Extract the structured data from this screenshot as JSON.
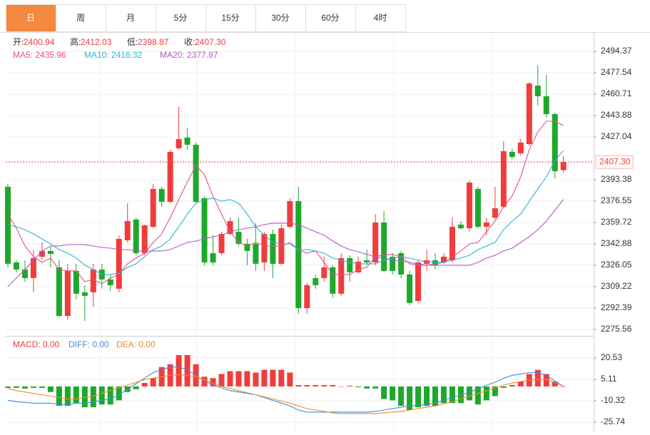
{
  "tabs": [
    {
      "label": "日",
      "active": true
    },
    {
      "label": "周"
    },
    {
      "label": "月"
    },
    {
      "label": "5分"
    },
    {
      "label": "15分"
    },
    {
      "label": "30分"
    },
    {
      "label": "60分"
    },
    {
      "label": "4时"
    }
  ],
  "chart_data": [
    {
      "type": "candlestick",
      "up_color": "#f23b3b",
      "down_color": "#1ea82b",
      "info": [
        {
          "key": "开:",
          "value": "2400.94"
        },
        {
          "key": "高:",
          "value": "2412.03"
        },
        {
          "key": "低:",
          "value": "2398.87"
        },
        {
          "key": "收:",
          "value": "2407.30"
        }
      ],
      "ylim": [
        2271.07,
        2509.5
      ],
      "yticks": [
        2494.37,
        2477.54,
        2460.71,
        2443.88,
        2427.04,
        2393.38,
        2376.55,
        2359.72,
        2342.88,
        2326.05,
        2309.22,
        2292.39,
        2275.56
      ],
      "grid": true,
      "candles": {
        "open": [
          2387.8,
          2328.3,
          2322.7,
          2316.0,
          2332.8,
          2337.3,
          2324.4,
          2286.2,
          2321.6,
          2304.8,
          2304.8,
          2322.7,
          2314.9,
          2307.6,
          2345.7,
          2362.0,
          2335.6,
          2356.3,
          2386.1,
          2376.0,
          2418.1,
          2426.5,
          2420.9,
          2378.8,
          2335.6,
          2335.6,
          2350.7,
          2352.4,
          2342.9,
          2342.9,
          2328.3,
          2350.7,
          2327.2,
          2356.3,
          2376.5,
          2292.4,
          2316.0,
          2316.0,
          2324.4,
          2303.7,
          2331.7,
          2320.5,
          2330.0,
          2328.3,
          2359.7,
          2332.8,
          2335.6,
          2318.8,
          2298.0,
          2327.2,
          2330.0,
          2328.3,
          2330.0,
          2358.0,
          2355.2,
          2386.1,
          2356.3,
          2363.6,
          2372.1,
          2415.3,
          2414.1,
          2421.4,
          2467.4,
          2459.0,
          2445.0,
          2400.94
        ],
        "high": [
          2390.0,
          2330.0,
          2330.0,
          2338.4,
          2344.0,
          2341.2,
          2330.0,
          2327.2,
          2327.2,
          2310.4,
          2327.2,
          2327.2,
          2318.8,
          2349.6,
          2374.9,
          2363.6,
          2358.0,
          2390.0,
          2387.8,
          2417.0,
          2450.6,
          2433.8,
          2422.6,
          2380.5,
          2349.6,
          2352.4,
          2363.6,
          2363.6,
          2346.8,
          2359.2,
          2352.4,
          2354.1,
          2358.0,
          2378.8,
          2387.8,
          2312.1,
          2318.8,
          2332.8,
          2326.1,
          2335.6,
          2333.9,
          2332.8,
          2338.4,
          2366.4,
          2368.7,
          2335.6,
          2337.3,
          2321.6,
          2329.4,
          2338.4,
          2335.6,
          2335.6,
          2363.6,
          2360.8,
          2392.8,
          2387.8,
          2363.6,
          2387.8,
          2423.7,
          2418.1,
          2425.4,
          2470.2,
          2483.2,
          2475.9,
          2446.1,
          2412.03
        ],
        "low": [
          2324.4,
          2320.5,
          2313.2,
          2304.8,
          2330.0,
          2324.4,
          2285.1,
          2283.4,
          2299.2,
          2282.3,
          2293.6,
          2307.6,
          2305.9,
          2304.8,
          2344.0,
          2333.9,
          2333.9,
          2355.2,
          2372.1,
          2374.9,
          2417.0,
          2417.0,
          2374.9,
          2326.1,
          2326.1,
          2333.9,
          2349.6,
          2341.2,
          2326.1,
          2321.6,
          2321.6,
          2316.0,
          2326.1,
          2355.2,
          2287.9,
          2287.9,
          2307.6,
          2313.2,
          2300.3,
          2302.0,
          2313.2,
          2319.3,
          2326.1,
          2326.1,
          2320.5,
          2318.8,
          2316.0,
          2294.7,
          2296.4,
          2321.6,
          2322.7,
          2327.2,
          2328.3,
          2354.1,
          2352.4,
          2355.2,
          2349.6,
          2362.0,
          2370.9,
          2409.6,
          2412.5,
          2419.8,
          2451.7,
          2442.2,
          2394.5,
          2398.87
        ],
        "close": [
          2327.2,
          2322.7,
          2316.0,
          2331.7,
          2337.3,
          2335.0,
          2286.2,
          2321.6,
          2303.7,
          2302.0,
          2322.7,
          2314.9,
          2310.4,
          2346.8,
          2360.8,
          2335.6,
          2357.5,
          2386.1,
          2376.0,
          2415.3,
          2425.4,
          2420.9,
          2376.0,
          2328.3,
          2328.3,
          2350.7,
          2360.8,
          2342.9,
          2337.3,
          2327.2,
          2350.7,
          2327.2,
          2355.2,
          2376.5,
          2292.4,
          2310.4,
          2310.4,
          2324.4,
          2303.7,
          2331.7,
          2320.5,
          2328.9,
          2328.3,
          2359.7,
          2321.6,
          2321.6,
          2318.8,
          2296.4,
          2328.3,
          2330.0,
          2326.1,
          2332.8,
          2356.3,
          2355.2,
          2391.1,
          2356.3,
          2359.7,
          2370.9,
          2415.8,
          2411.3,
          2422.6,
          2469.1,
          2459.0,
          2445.0,
          2400.1,
          2407.3
        ]
      },
      "series": [
        {
          "legend": "MA5: 2435.96",
          "color": "#e5508f",
          "values": [
            2366.4,
            2355.2,
            2341.2,
            2332.8,
            2328.3,
            2331.7,
            2322.7,
            2321.6,
            2321.6,
            2313.2,
            2314.9,
            2311.5,
            2316.0,
            2318.8,
            2327.2,
            2331.7,
            2335.6,
            2344.0,
            2350.7,
            2363.6,
            2377.7,
            2391.7,
            2404.6,
            2397.3,
            2380.5,
            2366.4,
            2352.4,
            2344.0,
            2341.2,
            2344.0,
            2341.2,
            2341.2,
            2341.2,
            2344.0,
            2338.4,
            2335.6,
            2337.3,
            2328.3,
            2318.8,
            2318.8,
            2318.8,
            2322.7,
            2324.4,
            2332.8,
            2334.5,
            2334.5,
            2332.8,
            2327.2,
            2326.1,
            2326.1,
            2327.2,
            2328.3,
            2332.8,
            2337.3,
            2342.9,
            2344.0,
            2352.4,
            2360.8,
            2372.1,
            2380.5,
            2395.6,
            2417.0,
            2431.0,
            2439.4,
            2439.4,
            2435.96
          ]
        },
        {
          "legend": "MA10: 2416.32",
          "color": "#2bb5d3",
          "values": [
            2358.0,
            2356.3,
            2354.1,
            2350.7,
            2346.8,
            2342.9,
            2338.4,
            2335.6,
            2331.7,
            2326.1,
            2322.7,
            2318.8,
            2318.8,
            2319.9,
            2324.4,
            2327.2,
            2332.8,
            2338.4,
            2341.2,
            2346.8,
            2356.3,
            2366.4,
            2374.9,
            2377.7,
            2378.8,
            2376.5,
            2377.7,
            2374.9,
            2366.4,
            2356.3,
            2349.6,
            2344.0,
            2342.9,
            2342.9,
            2338.4,
            2338.4,
            2337.3,
            2335.6,
            2331.7,
            2330.0,
            2328.3,
            2327.2,
            2327.2,
            2327.2,
            2330.0,
            2331.7,
            2332.8,
            2331.7,
            2330.0,
            2328.9,
            2328.3,
            2328.3,
            2330.0,
            2331.7,
            2333.9,
            2338.4,
            2341.2,
            2344.0,
            2354.1,
            2360.8,
            2366.4,
            2376.5,
            2386.1,
            2395.6,
            2408.5,
            2416.32
          ]
        },
        {
          "legend": "MA20: 2377.87",
          "color": "#b25ac5",
          "values": [
            2309.2,
            2316.0,
            2322.7,
            2330.0,
            2337.3,
            2341.2,
            2341.2,
            2342.3,
            2342.3,
            2342.3,
            2341.2,
            2340.1,
            2339.5,
            2338.4,
            2338.4,
            2337.3,
            2337.3,
            2337.3,
            2337.3,
            2338.4,
            2341.2,
            2344.0,
            2345.1,
            2346.8,
            2348.5,
            2349.6,
            2352.4,
            2354.1,
            2355.2,
            2356.3,
            2358.0,
            2359.2,
            2359.2,
            2359.2,
            2358.0,
            2355.2,
            2352.4,
            2349.6,
            2345.1,
            2341.2,
            2338.4,
            2336.7,
            2334.5,
            2332.8,
            2331.7,
            2330.0,
            2329.4,
            2328.3,
            2327.2,
            2326.1,
            2326.1,
            2326.1,
            2326.1,
            2326.1,
            2326.1,
            2328.3,
            2331.7,
            2333.9,
            2337.3,
            2339.5,
            2344.0,
            2348.5,
            2354.1,
            2360.8,
            2369.3,
            2377.87
          ]
        }
      ]
    },
    {
      "type": "macd",
      "ylim": [
        -29.85,
        34.4
      ],
      "yticks": [
        20.53,
        5.11,
        -10.32,
        -25.74
      ],
      "grid": true,
      "up_color": "#f23b3b",
      "down_color": "#1ea82b",
      "histogram": {
        "legend": "MACD: 0.00",
        "color": "#f23b3b",
        "values": [
          -1,
          -1,
          -1.5,
          -1,
          -1,
          -4,
          -14,
          -14,
          -12,
          -15,
          -15,
          -13,
          -13,
          -10,
          -4,
          -2,
          2.5,
          6,
          14,
          16,
          22.6,
          22.6,
          16,
          7,
          6,
          9,
          11,
          11,
          11,
          10,
          12,
          12,
          12,
          10,
          1,
          1,
          1,
          1,
          1,
          0,
          0.5,
          -0.5,
          -1.5,
          -1.5,
          -9,
          -10,
          -14,
          -17,
          -15,
          -14,
          -14,
          -12,
          -12,
          -12,
          -10,
          -13,
          -10,
          -7,
          -1,
          1,
          3.6,
          9,
          12,
          9,
          3.6,
          0
        ]
      },
      "series": [
        {
          "legend": "DIFF: 0.00",
          "color": "#3b8fe0",
          "values": [
            -10,
            -11,
            -11.5,
            -12,
            -12,
            -12,
            -13,
            -13,
            -12,
            -12,
            -11,
            -10,
            -9,
            -6,
            -2,
            2,
            6,
            10,
            12,
            14,
            14,
            12,
            8,
            4,
            1,
            -1,
            -3,
            -4,
            -5,
            -6,
            -8,
            -10,
            -12,
            -14,
            -17,
            -18.5,
            -18.5,
            -18.5,
            -18.5,
            -18.5,
            -18.5,
            -18.5,
            -18.5,
            -18,
            -17,
            -16,
            -15,
            -14,
            -13.5,
            -13,
            -12,
            -10,
            -8,
            -6,
            -4,
            -2,
            1,
            3,
            6,
            8,
            9,
            10,
            10,
            8,
            4,
            0
          ]
        },
        {
          "legend": "DEA: 0.00",
          "color": "#f08a24",
          "values": [
            -1.5,
            -3,
            -4,
            -5,
            -6,
            -7,
            -8,
            -9,
            -9,
            -8,
            -7,
            -5,
            -3,
            -1,
            1,
            3,
            5,
            6,
            7,
            8,
            8.5,
            8,
            7,
            5,
            2,
            0,
            -1.5,
            -3,
            -4.5,
            -6,
            -7.5,
            -9,
            -10.5,
            -12,
            -14,
            -16,
            -17,
            -18,
            -19,
            -19.5,
            -19.5,
            -19.5,
            -19.5,
            -19.5,
            -19,
            -18.5,
            -18,
            -17,
            -16,
            -15,
            -14,
            -12.5,
            -11,
            -9,
            -7,
            -5,
            -3,
            -1,
            1,
            2.5,
            3.5,
            4.5,
            5,
            5,
            3,
            0
          ]
        }
      ]
    }
  ]
}
